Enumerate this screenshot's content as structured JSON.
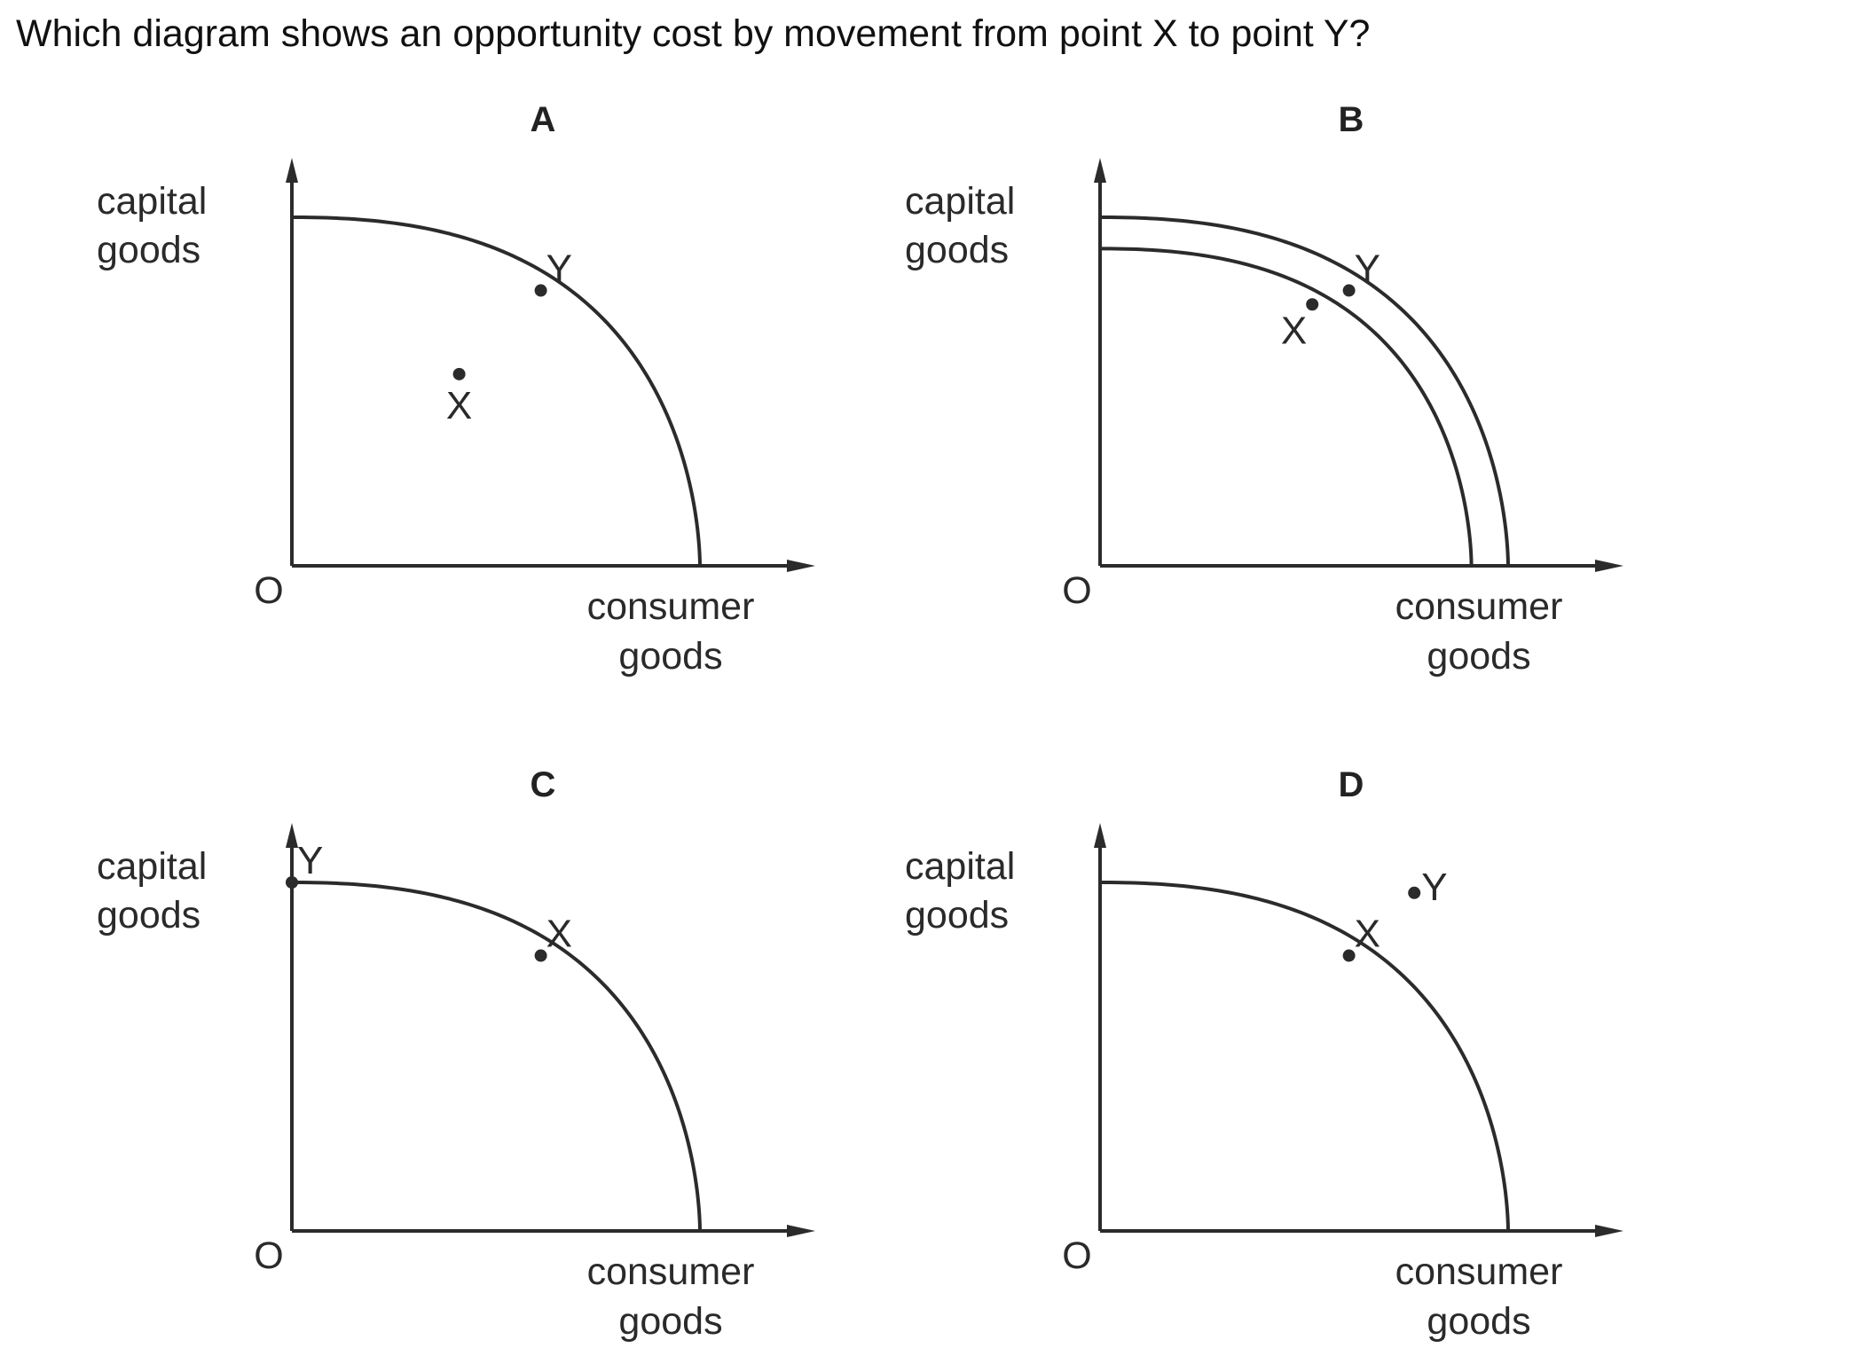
{
  "question": "Which diagram shows an opportunity cost by movement from point X to point Y?",
  "colors": {
    "ink": "#2b2b2b",
    "background": "#ffffff"
  },
  "panels": [
    {
      "letter": "A",
      "y_label": [
        "capital",
        "goods"
      ],
      "x_label": [
        "consumer",
        "goods"
      ],
      "origin_label": "O",
      "curves": [
        {
          "capital_max": 1.0,
          "consumer_max": 1.0
        }
      ],
      "points": [
        {
          "label": "X",
          "consumer": 0.41,
          "capital": 0.55,
          "label_side": "below"
        },
        {
          "label": "Y",
          "consumer": 0.61,
          "capital": 0.79,
          "label_side": "upper-right"
        }
      ]
    },
    {
      "letter": "B",
      "y_label": [
        "capital",
        "goods"
      ],
      "x_label": [
        "consumer",
        "goods"
      ],
      "origin_label": "O",
      "curves": [
        {
          "capital_max": 0.91,
          "consumer_max": 0.91
        },
        {
          "capital_max": 1.0,
          "consumer_max": 1.0
        }
      ],
      "points": [
        {
          "label": "X",
          "consumer": 0.52,
          "capital": 0.75,
          "label_side": "lower-left"
        },
        {
          "label": "Y",
          "consumer": 0.61,
          "capital": 0.79,
          "label_side": "upper-right"
        }
      ]
    },
    {
      "letter": "C",
      "y_label": [
        "capital",
        "goods"
      ],
      "x_label": [
        "consumer",
        "goods"
      ],
      "origin_label": "O",
      "curves": [
        {
          "capital_max": 1.0,
          "consumer_max": 1.0
        }
      ],
      "points": [
        {
          "label": "Y",
          "consumer": 0.0,
          "capital": 1.0,
          "label_side": "upper-right"
        },
        {
          "label": "X",
          "consumer": 0.61,
          "capital": 0.79,
          "label_side": "upper-right"
        }
      ]
    },
    {
      "letter": "D",
      "y_label": [
        "capital",
        "goods"
      ],
      "x_label": [
        "consumer",
        "goods"
      ],
      "origin_label": "O",
      "curves": [
        {
          "capital_max": 1.0,
          "consumer_max": 1.0
        }
      ],
      "points": [
        {
          "label": "X",
          "consumer": 0.61,
          "capital": 0.79,
          "label_side": "upper-right"
        },
        {
          "label": "Y",
          "consumer": 0.77,
          "capital": 0.97,
          "label_side": "right"
        }
      ]
    }
  ]
}
